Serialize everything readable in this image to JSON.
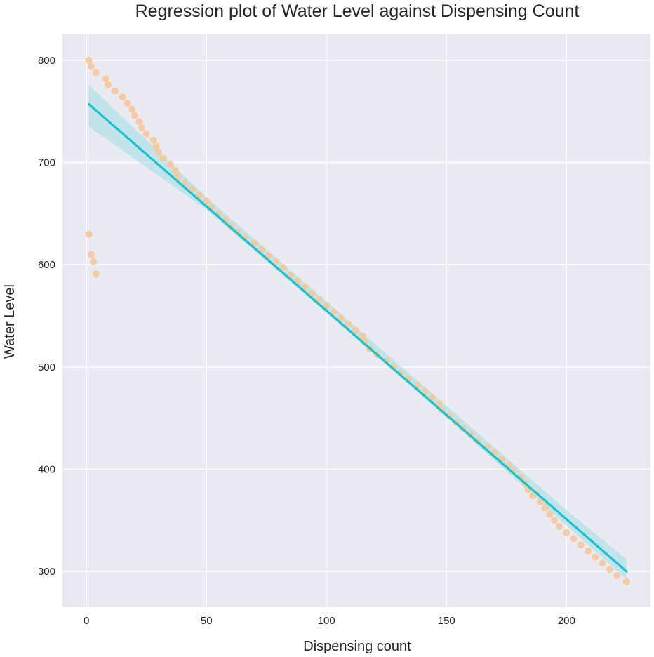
{
  "chart_data": {
    "type": "scatter",
    "title": "Regression plot of Water Level against Dispensing Count",
    "xlabel": "Dispensing count",
    "ylabel": "Water Level",
    "xlim": [
      -10,
      235
    ],
    "ylim": [
      265,
      826
    ],
    "xticks": [
      0,
      50,
      100,
      150,
      200
    ],
    "yticks": [
      300,
      400,
      500,
      600,
      700,
      800
    ],
    "grid": true,
    "colors": {
      "background": "#eaeaf2",
      "grid": "#ffffff",
      "points": "#f5c89a",
      "line": "#17c3cf",
      "band": "#a8dde6"
    },
    "points": [
      [
        1,
        800
      ],
      [
        2,
        794
      ],
      [
        4,
        788
      ],
      [
        8,
        782
      ],
      [
        9,
        776
      ],
      [
        12,
        770
      ],
      [
        15,
        764
      ],
      [
        17,
        758
      ],
      [
        19,
        752
      ],
      [
        20,
        746
      ],
      [
        22,
        740
      ],
      [
        23,
        734
      ],
      [
        25,
        728
      ],
      [
        28,
        722
      ],
      [
        29,
        716
      ],
      [
        30,
        710
      ],
      [
        32,
        704
      ],
      [
        35,
        698
      ],
      [
        37,
        692
      ],
      [
        38,
        686
      ],
      [
        41,
        680
      ],
      [
        44,
        674
      ],
      [
        47,
        668
      ],
      [
        50,
        662
      ],
      [
        52,
        656
      ],
      [
        55,
        650
      ],
      [
        58,
        644
      ],
      [
        60,
        638
      ],
      [
        63,
        632
      ],
      [
        66,
        627
      ],
      [
        70,
        621
      ],
      [
        73,
        615
      ],
      [
        76,
        609
      ],
      [
        79,
        603
      ],
      [
        82,
        597
      ],
      [
        85,
        590
      ],
      [
        88,
        584
      ],
      [
        91,
        578
      ],
      [
        94,
        572
      ],
      [
        97,
        566
      ],
      [
        100,
        560
      ],
      [
        103,
        554
      ],
      [
        106,
        548
      ],
      [
        109,
        542
      ],
      [
        112,
        536
      ],
      [
        115,
        530
      ],
      [
        116,
        524
      ],
      [
        118,
        518
      ],
      [
        121,
        512
      ],
      [
        125,
        506
      ],
      [
        128,
        500
      ],
      [
        131,
        494
      ],
      [
        134,
        488
      ],
      [
        138,
        482
      ],
      [
        141,
        476
      ],
      [
        144,
        470
      ],
      [
        147,
        464
      ],
      [
        148,
        458
      ],
      [
        151,
        452
      ],
      [
        154,
        446
      ],
      [
        157,
        440
      ],
      [
        160,
        434
      ],
      [
        163,
        428
      ],
      [
        167,
        422
      ],
      [
        170,
        416
      ],
      [
        173,
        410
      ],
      [
        176,
        404
      ],
      [
        178,
        398
      ],
      [
        181,
        392
      ],
      [
        183,
        386
      ],
      [
        184,
        380
      ],
      [
        186,
        374
      ],
      [
        189,
        368
      ],
      [
        191,
        362
      ],
      [
        193,
        356
      ],
      [
        195,
        350
      ],
      [
        197,
        344
      ],
      [
        200,
        338
      ],
      [
        203,
        332
      ],
      [
        206,
        326
      ],
      [
        209,
        320
      ],
      [
        212,
        314
      ],
      [
        215,
        308
      ],
      [
        218,
        302
      ],
      [
        221,
        296
      ],
      [
        225,
        290
      ],
      [
        1,
        630
      ],
      [
        2,
        610
      ],
      [
        3,
        603
      ],
      [
        4,
        591
      ]
    ],
    "regression_line": [
      [
        1,
        757
      ],
      [
        225,
        300
      ]
    ],
    "confidence_band": {
      "x": [
        1,
        50,
        100,
        150,
        200,
        225
      ],
      "upper": [
        776,
        666,
        564,
        462,
        360,
        312
      ],
      "lower": [
        735,
        654,
        553,
        451,
        345,
        292
      ]
    }
  }
}
